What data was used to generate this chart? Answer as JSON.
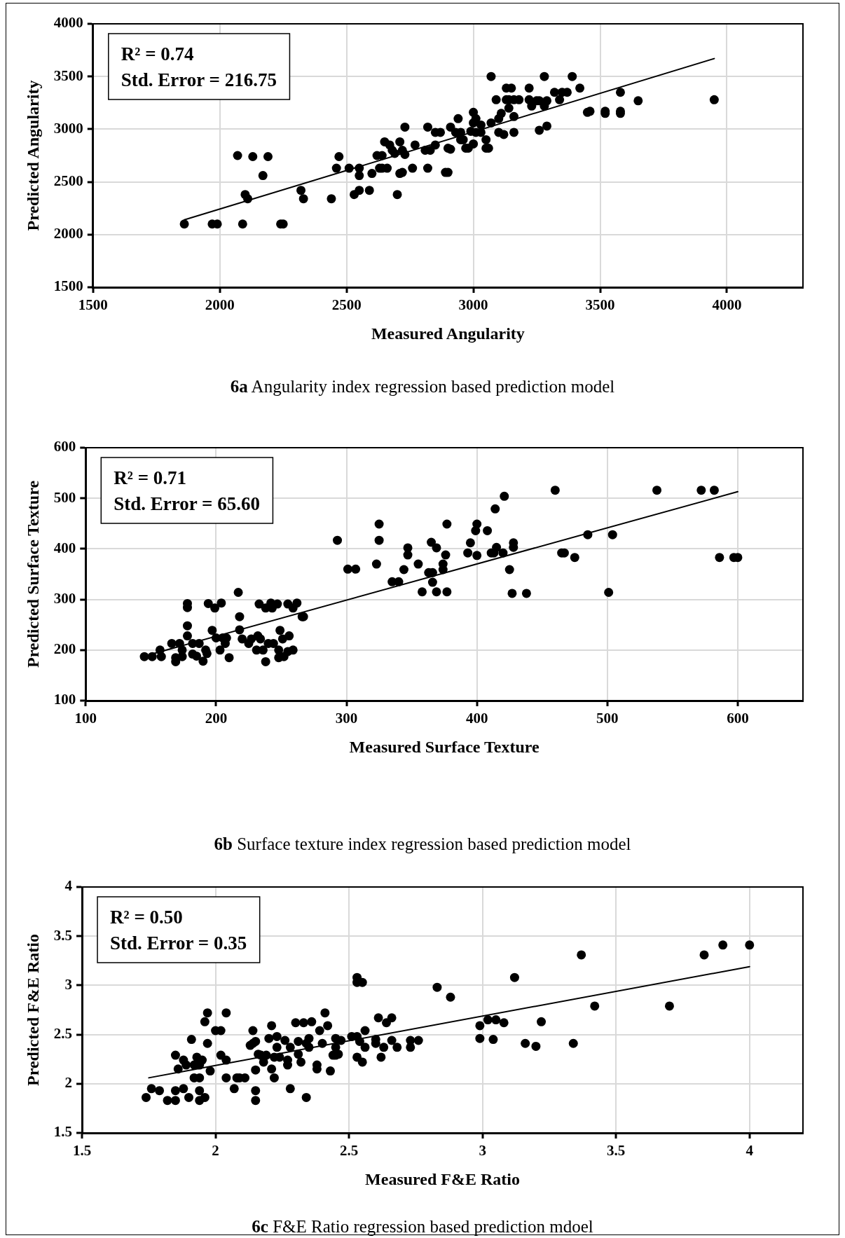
{
  "chart_data": [
    {
      "type": "scatter",
      "xlabel": "Measured Angularity",
      "ylabel": "Predicted Angularity",
      "xlim": [
        1500,
        4300
      ],
      "ylim": [
        1500,
        4000
      ],
      "xticks": [
        1500,
        2000,
        2500,
        3000,
        3500,
        4000
      ],
      "yticks": [
        1500,
        2000,
        2500,
        3000,
        3500,
        4000
      ],
      "grid": true,
      "annotations": [
        "R² = 0.74",
        "Std. Error = 216.75",
        "6a Angularity index regression based prediction model"
      ],
      "series": [
        {
          "marker": "circle",
          "color": "#000000",
          "x": [
            1860,
            1970,
            1990,
            2090,
            2240,
            2250,
            2070,
            2130,
            2190,
            2170,
            2100,
            2110,
            2320,
            2330,
            2440,
            2470,
            2460,
            2510,
            2550,
            2550,
            2530,
            2550,
            2590,
            2600,
            2620,
            2640,
            2630,
            2640,
            2660,
            2650,
            2670,
            2680,
            2690,
            2710,
            2720,
            2730,
            2730,
            2700,
            2710,
            2720,
            2760,
            2770,
            2810,
            2830,
            2820,
            2820,
            2850,
            2870,
            2850,
            2900,
            2910,
            2890,
            2900,
            2910,
            2930,
            2940,
            2950,
            2950,
            2960,
            2970,
            2980,
            3000,
            2990,
            3010,
            3000,
            3010,
            3030,
            3030,
            3000,
            3050,
            3050,
            3060,
            3070,
            3070,
            3090,
            3100,
            3100,
            3120,
            3110,
            3130,
            3150,
            3130,
            3140,
            3160,
            3140,
            3160,
            3160,
            3180,
            3220,
            3220,
            3230,
            3250,
            3260,
            3260,
            3280,
            3280,
            3290,
            3290,
            3320,
            3340,
            3350,
            3370,
            3390,
            3420,
            3450,
            3460,
            3520,
            3520,
            3580,
            3580,
            3580,
            3650,
            3950
          ],
          "values": [
            2100,
            2100,
            2100,
            2100,
            2100,
            2100,
            2750,
            2740,
            2740,
            2560,
            2380,
            2340,
            2420,
            2340,
            2340,
            2740,
            2630,
            2630,
            2630,
            2560,
            2380,
            2420,
            2420,
            2580,
            2750,
            2750,
            2630,
            2630,
            2630,
            2880,
            2850,
            2800,
            2770,
            2880,
            2800,
            2760,
            3020,
            2380,
            2580,
            2590,
            2630,
            2850,
            2800,
            2800,
            2630,
            3020,
            2970,
            2970,
            2850,
            2820,
            2810,
            2590,
            2590,
            3020,
            2970,
            3100,
            2970,
            2900,
            2900,
            2820,
            2820,
            3160,
            2980,
            3100,
            3060,
            2970,
            2970,
            3040,
            2860,
            2900,
            2820,
            2820,
            3060,
            3500,
            3280,
            3100,
            2970,
            2950,
            3150,
            3390,
            3390,
            3280,
            3280,
            3280,
            3200,
            2970,
            3120,
            3280,
            3390,
            3280,
            3220,
            3270,
            3270,
            2990,
            3220,
            3500,
            3270,
            3030,
            3350,
            3280,
            3350,
            3350,
            3500,
            3390,
            3160,
            3170,
            3170,
            3150,
            3170,
            3150,
            3350,
            3270,
            3280
          ]
        },
        {
          "type": "line",
          "marker": "none",
          "color": "#000000",
          "x": [
            1860,
            3950
          ],
          "values": [
            2140,
            3670
          ]
        }
      ]
    },
    {
      "type": "scatter",
      "xlabel": "Measured Surface Texture",
      "ylabel": "Predicted Surface Texture",
      "xlim": [
        100,
        650
      ],
      "ylim": [
        100,
        600
      ],
      "xticks": [
        100,
        200,
        300,
        400,
        500,
        600
      ],
      "yticks": [
        100,
        200,
        300,
        400,
        500,
        600
      ],
      "grid": true,
      "annotations": [
        "R² = 0.71",
        "Std. Error = 65.60",
        "6b Surface texture index regression based prediction model"
      ],
      "series": [
        {
          "marker": "circle",
          "color": "#000000",
          "x": [
            145,
            151,
            158,
            157,
            166,
            169,
            169,
            172,
            174,
            174,
            178,
            178,
            178,
            178,
            182,
            187,
            182,
            185,
            190,
            192,
            193,
            194,
            197,
            199,
            200,
            203,
            204,
            205,
            208,
            207,
            210,
            217,
            218,
            218,
            220,
            225,
            227,
            231,
            232,
            234,
            236,
            233,
            238,
            242,
            243,
            247,
            238,
            240,
            244,
            248,
            248,
            249,
            251,
            252,
            255,
            256,
            255,
            259,
            262,
            259,
            266,
            267,
            293,
            301,
            307,
            323,
            325,
            325,
            335,
            340,
            344,
            347,
            347,
            355,
            358,
            363,
            366,
            365,
            369,
            366,
            369,
            376,
            374,
            374,
            377,
            377,
            393,
            395,
            399,
            400,
            400,
            408,
            411,
            413,
            415,
            414,
            420,
            421,
            428,
            428,
            425,
            427,
            438,
            460,
            465,
            467,
            475,
            485,
            501,
            504,
            538,
            572,
            582,
            586,
            597,
            600
          ],
          "values": [
            187,
            187,
            187,
            200,
            213,
            185,
            177,
            213,
            200,
            187,
            292,
            284,
            248,
            228,
            213,
            213,
            192,
            188,
            178,
            200,
            193,
            292,
            239,
            283,
            224,
            200,
            293,
            224,
            224,
            213,
            185,
            314,
            266,
            240,
            222,
            213,
            222,
            200,
            228,
            222,
            200,
            291,
            283,
            293,
            283,
            291,
            177,
            213,
            213,
            200,
            185,
            239,
            222,
            187,
            197,
            228,
            291,
            283,
            293,
            200,
            266,
            266,
            417,
            360,
            360,
            370,
            449,
            417,
            335,
            335,
            359,
            402,
            388,
            370,
            315,
            353,
            353,
            413,
            402,
            334,
            315,
            388,
            370,
            359,
            449,
            315,
            392,
            412,
            436,
            449,
            387,
            436,
            392,
            392,
            403,
            479,
            392,
            504,
            412,
            403,
            359,
            312,
            312,
            516,
            392,
            392,
            383,
            428,
            314,
            428,
            516,
            516,
            516,
            383,
            383,
            383
          ]
        },
        {
          "type": "line",
          "marker": "none",
          "color": "#000000",
          "x": [
            145,
            600
          ],
          "values": [
            188,
            513
          ]
        }
      ]
    },
    {
      "type": "scatter",
      "xlabel": "Measured F&E Ratio",
      "ylabel": "Predicted F&E Ratio",
      "xlim": [
        1.5,
        4.2
      ],
      "ylim": [
        1.5,
        4
      ],
      "xticks": [
        1.5,
        2,
        2.5,
        3,
        3.5,
        4
      ],
      "yticks": [
        1.5,
        2,
        2.5,
        3,
        3.5,
        4
      ],
      "grid": true,
      "annotations": [
        "R² = 0.50",
        "Std. Error = 0.35",
        "6c F&E Ratio regression based prediction mdoel"
      ],
      "series": [
        {
          "marker": "circle",
          "color": "#000000",
          "x": [
            1.74,
            1.76,
            1.79,
            1.82,
            1.85,
            1.88,
            1.85,
            1.9,
            1.94,
            1.94,
            1.96,
            1.86,
            1.85,
            1.88,
            1.89,
            1.91,
            1.92,
            1.94,
            1.93,
            1.92,
            1.94,
            1.95,
            1.98,
            1.97,
            1.96,
            1.97,
            2.0,
            2.02,
            2.04,
            2.02,
            2.04,
            2.04,
            2.07,
            2.08,
            2.09,
            2.11,
            2.14,
            2.13,
            2.14,
            2.15,
            2.16,
            2.17,
            2.19,
            2.18,
            2.15,
            2.15,
            2.15,
            2.21,
            2.2,
            2.23,
            2.23,
            2.22,
            2.24,
            2.21,
            2.22,
            2.26,
            2.28,
            2.3,
            2.33,
            2.36,
            2.31,
            2.31,
            2.27,
            2.27,
            2.32,
            2.28,
            2.34,
            2.34,
            2.35,
            2.35,
            2.41,
            2.42,
            2.39,
            2.4,
            2.38,
            2.38,
            2.43,
            2.45,
            2.47,
            2.45,
            2.44,
            2.45,
            2.46,
            2.51,
            2.53,
            2.53,
            2.53,
            2.55,
            2.54,
            2.56,
            2.53,
            2.55,
            2.56,
            2.61,
            2.64,
            2.66,
            2.6,
            2.6,
            2.63,
            2.66,
            2.62,
            2.68,
            2.73,
            2.76,
            2.73,
            2.83,
            2.88,
            2.99,
            2.99,
            3.02,
            3.05,
            3.04,
            3.08,
            3.12,
            3.16,
            3.2,
            3.22,
            3.34,
            3.37,
            3.42,
            3.7,
            3.83,
            3.9,
            4.0
          ],
          "values": [
            1.86,
            1.95,
            1.93,
            1.83,
            1.93,
            1.95,
            1.83,
            1.86,
            1.93,
            1.83,
            1.86,
            2.15,
            2.29,
            2.24,
            2.19,
            2.45,
            2.06,
            2.06,
            2.27,
            2.19,
            2.19,
            2.24,
            2.13,
            2.72,
            2.63,
            2.41,
            2.54,
            2.54,
            2.72,
            2.29,
            2.24,
            2.06,
            1.95,
            2.06,
            2.06,
            2.06,
            2.54,
            2.39,
            2.41,
            2.43,
            2.3,
            2.29,
            2.29,
            2.22,
            2.14,
            1.93,
            1.83,
            2.59,
            2.46,
            2.48,
            2.37,
            2.27,
            2.27,
            2.15,
            2.06,
            2.44,
            2.37,
            2.62,
            2.62,
            2.63,
            2.43,
            2.3,
            2.24,
            2.19,
            2.22,
            1.95,
            1.86,
            2.41,
            2.37,
            2.46,
            2.72,
            2.59,
            2.54,
            2.41,
            2.19,
            2.15,
            2.13,
            2.46,
            2.44,
            2.37,
            2.29,
            2.29,
            2.3,
            2.48,
            2.48,
            3.08,
            3.03,
            3.03,
            2.43,
            2.37,
            2.27,
            2.22,
            2.54,
            2.67,
            2.62,
            2.67,
            2.45,
            2.41,
            2.37,
            2.44,
            2.27,
            2.37,
            2.44,
            2.44,
            2.37,
            2.98,
            2.88,
            2.59,
            2.46,
            2.65,
            2.65,
            2.45,
            2.62,
            3.08,
            2.41,
            2.38,
            2.63,
            2.41,
            3.31,
            2.79,
            2.79,
            3.31,
            3.41,
            3.41
          ]
        },
        {
          "type": "line",
          "marker": "none",
          "color": "#000000",
          "x": [
            1.75,
            4.0
          ],
          "values": [
            2.06,
            3.19
          ]
        }
      ]
    }
  ]
}
